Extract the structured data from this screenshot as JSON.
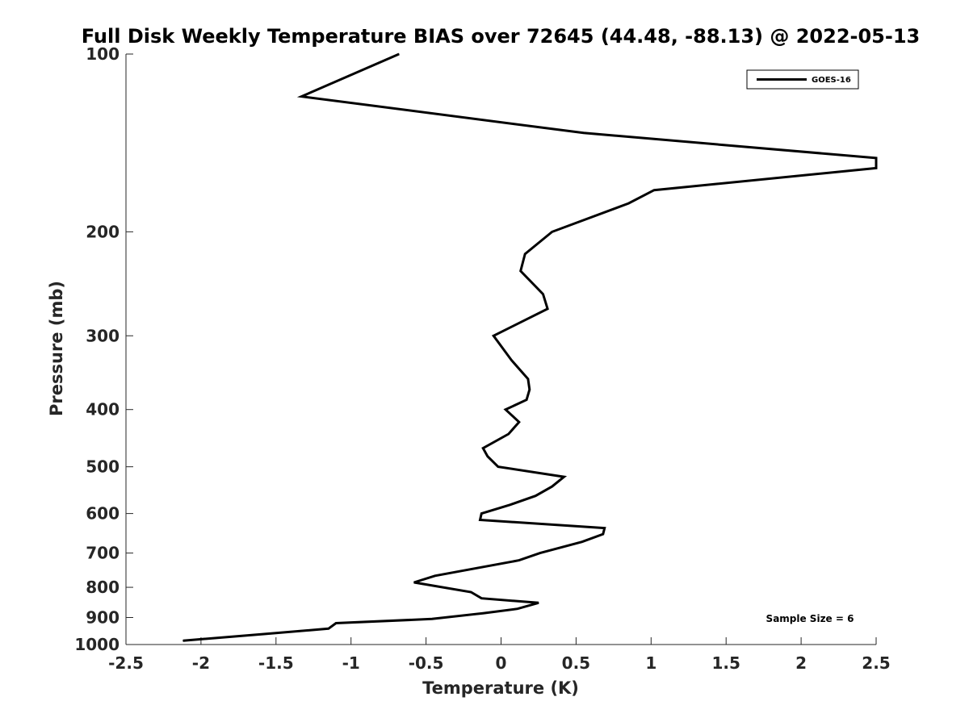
{
  "chart_data": {
    "type": "line",
    "title": "Full Disk Weekly Temperature BIAS over 72645 (44.48, -88.13) @ 2022-05-13",
    "xlabel": "Temperature (K)",
    "ylabel": "Pressure (mb)",
    "xlim": [
      -2.5,
      2.5
    ],
    "ylim": [
      100,
      1000
    ],
    "y_scale": "log",
    "y_reversed": true,
    "x_ticks": [
      -2.5,
      -2,
      -1.5,
      -1,
      -0.5,
      0,
      0.5,
      1,
      1.5,
      2,
      2.5
    ],
    "x_tick_labels": [
      "-2.5",
      "-2",
      "-1.5",
      "-1",
      "-0.5",
      "0",
      "0.5",
      "1",
      "1.5",
      "2",
      "2.5"
    ],
    "y_ticks": [
      100,
      200,
      300,
      400,
      500,
      600,
      700,
      800,
      900,
      1000
    ],
    "y_tick_labels": [
      "100",
      "200",
      "300",
      "400",
      "500",
      "600",
      "700",
      "800",
      "900",
      "1000"
    ],
    "grid": false,
    "legend_position": "top-right",
    "series": [
      {
        "name": "GOES-16",
        "color": "#000000",
        "points": [
          [
            -0.68,
            100
          ],
          [
            -1.33,
            118
          ],
          [
            0.55,
            136
          ],
          [
            2.5,
            150
          ],
          [
            2.5,
            156
          ],
          [
            1.02,
            170
          ],
          [
            0.85,
            179
          ],
          [
            0.34,
            200
          ],
          [
            0.16,
            218
          ],
          [
            0.13,
            233
          ],
          [
            0.28,
            255
          ],
          [
            0.31,
            270
          ],
          [
            -0.05,
            300
          ],
          [
            0.07,
            330
          ],
          [
            0.18,
            355
          ],
          [
            0.19,
            370
          ],
          [
            0.17,
            385
          ],
          [
            0.03,
            400
          ],
          [
            0.12,
            420
          ],
          [
            0.05,
            440
          ],
          [
            -0.12,
            465
          ],
          [
            -0.09,
            480
          ],
          [
            -0.02,
            500
          ],
          [
            0.42,
            520
          ],
          [
            0.34,
            540
          ],
          [
            0.23,
            560
          ],
          [
            0.06,
            580
          ],
          [
            -0.13,
            600
          ],
          [
            -0.14,
            615
          ],
          [
            0.69,
            635
          ],
          [
            0.68,
            650
          ],
          [
            0.54,
            670
          ],
          [
            0.26,
            700
          ],
          [
            0.12,
            720
          ],
          [
            -0.44,
            765
          ],
          [
            -0.58,
            785
          ],
          [
            -0.2,
            815
          ],
          [
            -0.13,
            835
          ],
          [
            0.25,
            850
          ],
          [
            0.11,
            870
          ],
          [
            -0.12,
            885
          ],
          [
            -0.46,
            905
          ],
          [
            -1.1,
            920
          ],
          [
            -1.15,
            940
          ],
          [
            -1.58,
            960
          ],
          [
            -2.12,
            985
          ]
        ]
      }
    ],
    "annotations": [
      "Sample Size = 6"
    ]
  }
}
